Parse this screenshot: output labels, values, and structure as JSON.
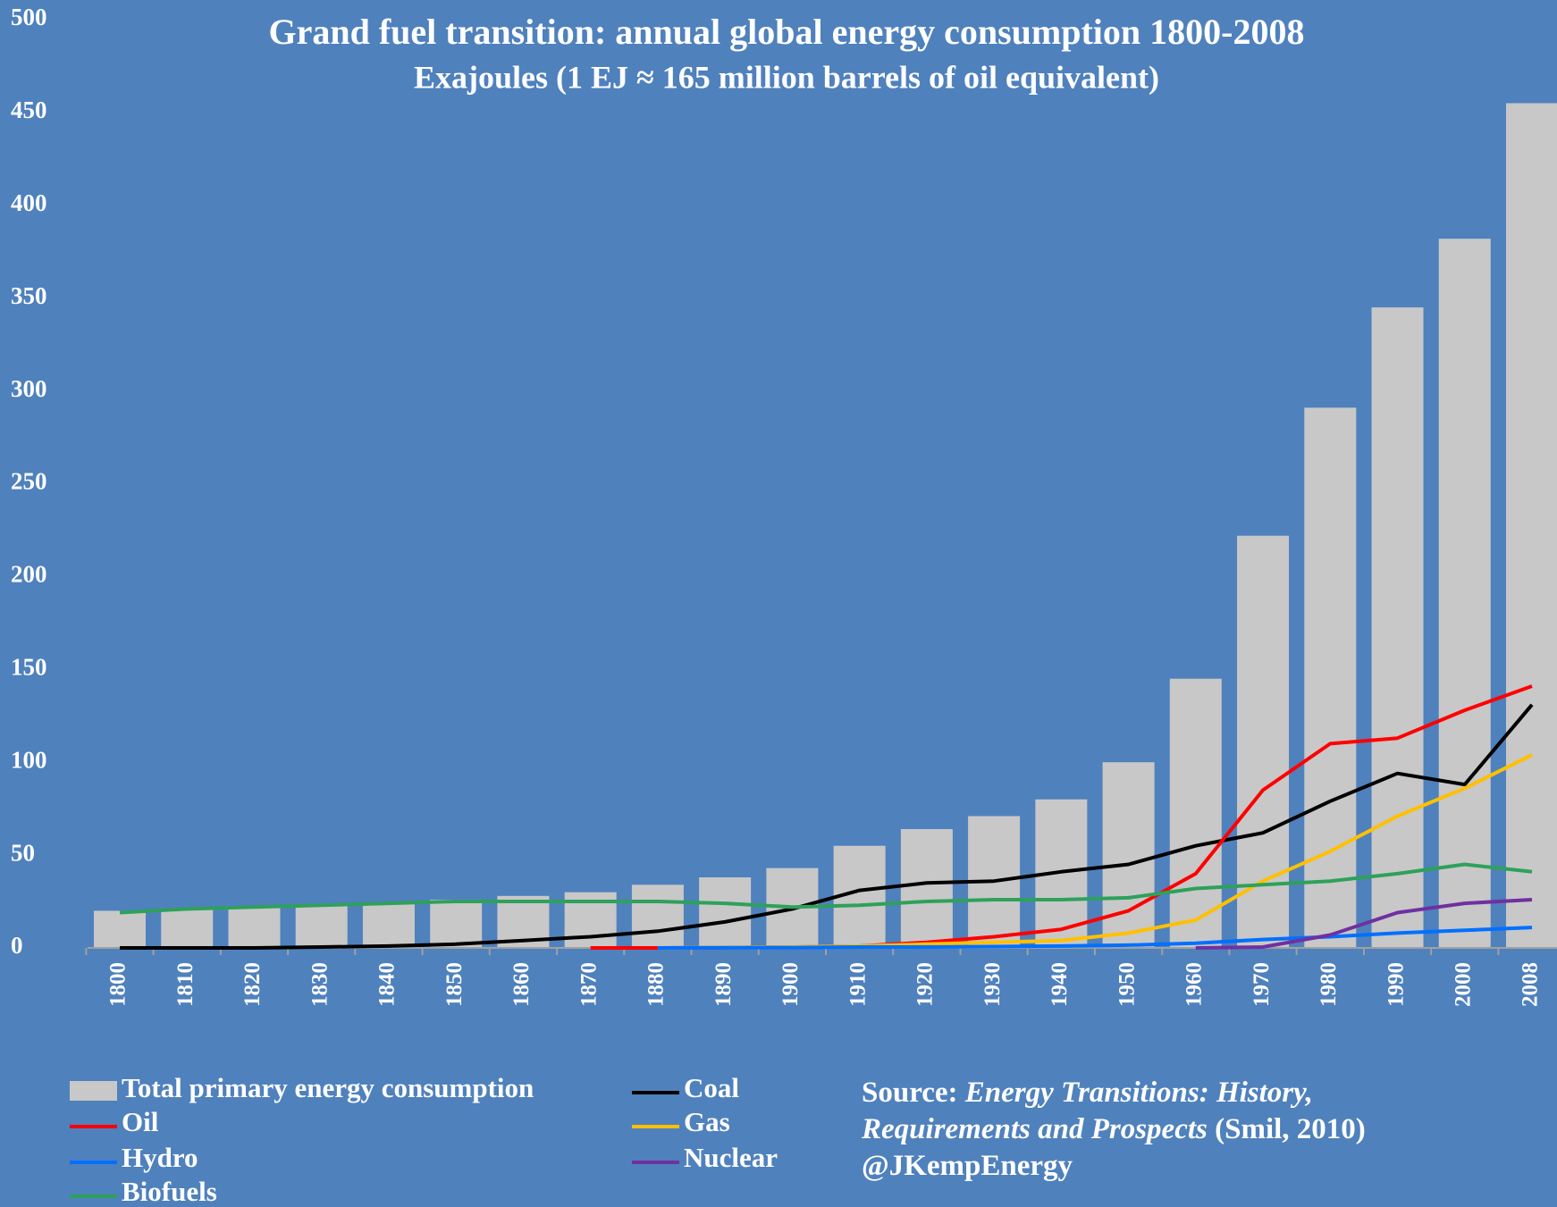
{
  "chart_data": {
    "type": "bar",
    "title": "Grand fuel transition: annual global energy consumption 1800-2008",
    "subtitle": "Exajoules (1 EJ ≈ 165 million barrels of oil equivalent)",
    "categories": [
      "1800",
      "1810",
      "1820",
      "1830",
      "1840",
      "1850",
      "1860",
      "1870",
      "1880",
      "1890",
      "1900",
      "1910",
      "1920",
      "1930",
      "1940",
      "1950",
      "1960",
      "1970",
      "1980",
      "1990",
      "2000",
      "2008"
    ],
    "series": [
      {
        "name": "Total primary energy consumption",
        "type": "bar",
        "color": "#c8c8c8",
        "values": [
          20,
          21,
          22,
          23,
          24,
          26,
          28,
          30,
          34,
          38,
          43,
          55,
          64,
          71,
          80,
          100,
          145,
          222,
          291,
          345,
          382,
          455
        ]
      },
      {
        "name": "Coal",
        "type": "line",
        "color": "#000000",
        "values": [
          0,
          0,
          0,
          0.5,
          1,
          2,
          4,
          6,
          9,
          14,
          21,
          31,
          35,
          36,
          41,
          45,
          55,
          62,
          79,
          94,
          88,
          131
        ]
      },
      {
        "name": "Oil",
        "type": "line",
        "color": "#ff0000",
        "values": [
          null,
          null,
          null,
          null,
          null,
          null,
          null,
          0,
          0,
          0.2,
          0.5,
          1,
          3,
          6,
          10,
          20,
          40,
          85,
          110,
          113,
          128,
          141
        ]
      },
      {
        "name": "Gas",
        "type": "line",
        "color": "#ffc000",
        "values": [
          null,
          null,
          null,
          null,
          null,
          null,
          null,
          null,
          0,
          0.3,
          0.5,
          1,
          2,
          3,
          4,
          8,
          15,
          36,
          52,
          71,
          86,
          104
        ]
      },
      {
        "name": "Hydro",
        "type": "line",
        "color": "#0070ff",
        "values": [
          null,
          null,
          null,
          null,
          null,
          null,
          null,
          null,
          0,
          0.1,
          0.2,
          0.5,
          0.5,
          0.7,
          1,
          1.5,
          2.5,
          4.5,
          6,
          8,
          9.5,
          11
        ]
      },
      {
        "name": "Nuclear",
        "type": "line",
        "color": "#7030a0",
        "values": [
          null,
          null,
          null,
          null,
          null,
          null,
          null,
          null,
          null,
          null,
          null,
          null,
          null,
          null,
          null,
          null,
          0,
          0.5,
          7,
          19,
          24,
          26
        ]
      },
      {
        "name": "Biofuels",
        "type": "line",
        "color": "#2ea15a",
        "values": [
          19,
          21,
          22,
          23,
          24,
          25,
          25,
          25,
          25,
          24,
          22,
          23,
          25,
          26,
          26,
          27,
          32,
          34,
          36,
          40,
          45,
          41
        ]
      }
    ],
    "ylim": [
      0,
      500
    ],
    "yticks": [
      0,
      50,
      100,
      150,
      200,
      250,
      300,
      350,
      400,
      450,
      500
    ],
    "grid": false,
    "source": {
      "label": "Source:",
      "title": "Energy Transitions: History, Requirements and Prospects",
      "citation": "(Smil, 2010)"
    },
    "credit": "@JKempEnergy"
  }
}
